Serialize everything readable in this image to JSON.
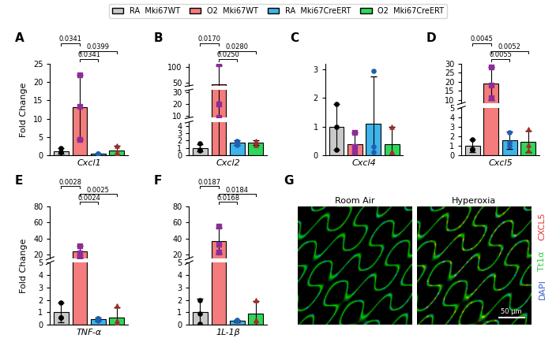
{
  "chart_data": [
    {
      "type": "bar",
      "title": "A",
      "y_label": "Fold Change",
      "categories": [
        "Cxcl1"
      ],
      "ylim": [
        0,
        25
      ],
      "yticks": [
        0,
        5,
        10,
        15,
        20,
        25
      ],
      "series": [
        {
          "color": "#c9c9c9",
          "marker": "circle",
          "values": [
            1.2
          ],
          "errors": [
            0.8
          ],
          "points": [
            [
              2.0,
              0.8,
              0.8
            ]
          ]
        },
        {
          "color": "#f47c7c",
          "marker": "square",
          "values": [
            13.2
          ],
          "errors": [
            8.8
          ],
          "points": [
            [
              21.9,
              13.3,
              4.4
            ]
          ]
        },
        {
          "color": "#3fb3ea",
          "marker": "circle",
          "values": [
            0.5
          ],
          "errors": [
            0.05
          ],
          "points": [
            [
              0.45,
              0.5,
              0.55
            ]
          ]
        },
        {
          "color": "#2fd65a",
          "marker": "triangle",
          "values": [
            1.3
          ],
          "errors": [
            1.2
          ],
          "points": [
            [
              2.7,
              0.8,
              0.4
            ]
          ]
        }
      ],
      "comparisons": [
        {
          "groups": [
            1,
            2
          ],
          "p": "0.0341"
        },
        {
          "groups": [
            1,
            3
          ],
          "p": "0.0399"
        },
        {
          "groups": [
            0,
            1
          ],
          "p": "0.0341"
        }
      ]
    },
    {
      "type": "bar",
      "title": "B",
      "categories": [
        "Cxcl2"
      ],
      "ylim": [
        [
          0,
          4.5
        ],
        [
          8,
          32
        ],
        [
          40,
          110
        ]
      ],
      "yticks": [
        [
          0,
          1,
          2,
          3,
          4
        ],
        [
          10,
          20,
          30
        ],
        [
          50,
          100
        ]
      ],
      "series": [
        {
          "color": "#c9c9c9",
          "marker": "circle",
          "values": [
            1.0
          ],
          "errors": [
            0.5
          ],
          "points": [
            [
              1.6,
              0.6,
              0.8
            ]
          ]
        },
        {
          "color": "#f47c7c",
          "marker": "square",
          "values": [
            45
          ],
          "errors": [
            60
          ],
          "points": [
            [
              108,
              20,
              8
            ]
          ]
        },
        {
          "color": "#3fb3ea",
          "marker": "circle",
          "values": [
            1.7
          ],
          "errors": [
            0.3
          ],
          "points": [
            [
              1.9,
              1.4,
              1.8
            ]
          ]
        },
        {
          "color": "#2fd65a",
          "marker": "triangle",
          "values": [
            1.7
          ],
          "errors": [
            0.3
          ],
          "points": [
            [
              1.4,
              1.8,
              1.9
            ]
          ]
        }
      ],
      "comparisons": [
        {
          "groups": [
            1,
            2
          ],
          "p": "0.0250"
        },
        {
          "groups": [
            1,
            3
          ],
          "p": "0.0280"
        },
        {
          "groups": [
            0,
            1
          ],
          "p": "0.0170"
        }
      ]
    },
    {
      "type": "bar",
      "title": "C",
      "categories": [
        "Cxcl4"
      ],
      "legend": "upper center",
      "ylim": [
        0,
        3.2
      ],
      "yticks": [
        0,
        1,
        2,
        3
      ],
      "series": [
        {
          "name": "RA  Mki67WT",
          "color": "#c9c9c9",
          "marker": "circle",
          "values": [
            1.0
          ],
          "errors": [
            0.8
          ],
          "points": [
            [
              1.8,
              1.0,
              0.2
            ]
          ]
        },
        {
          "name": "O2  Mki67WT",
          "color": "#f47c7c",
          "marker": "square",
          "values": [
            0.4
          ],
          "errors": [
            0.4
          ],
          "points": [
            [
              0.8,
              0.3,
              0.1
            ]
          ]
        },
        {
          "name": "RA  Mki67CreERT",
          "color": "#3fb3ea",
          "marker": "circle",
          "values": [
            1.1
          ],
          "errors": [
            1.65
          ],
          "points": [
            [
              2.95,
              0.3,
              0.1
            ]
          ]
        },
        {
          "name": "O2  Mki67CreERT",
          "color": "#2fd65a",
          "marker": "triangle",
          "values": [
            0.4
          ],
          "errors": [
            0.6
          ],
          "points": [
            [
              1.0,
              0.1,
              0.1
            ]
          ]
        }
      ]
    },
    {
      "type": "bar",
      "title": "D",
      "categories": [
        "Cxcl5"
      ],
      "ylim": [
        [
          0,
          5
        ],
        [
          8,
          30
        ]
      ],
      "yticks": [
        [
          0,
          1,
          2,
          3,
          4,
          5
        ],
        [
          10,
          15,
          20,
          25,
          30
        ]
      ],
      "series": [
        {
          "color": "#c9c9c9",
          "marker": "circle",
          "values": [
            1.0
          ],
          "errors": [
            0.7
          ],
          "points": [
            [
              1.7,
              0.6,
              0.7
            ]
          ]
        },
        {
          "color": "#f47c7c",
          "marker": "square",
          "values": [
            19
          ],
          "errors": [
            9
          ],
          "points": [
            [
              28,
              18,
              11
            ]
          ]
        },
        {
          "color": "#3fb3ea",
          "marker": "circle",
          "values": [
            1.55
          ],
          "errors": [
            0.9
          ],
          "points": [
            [
              2.4,
              1.3,
              1.0
            ]
          ]
        },
        {
          "color": "#2fd65a",
          "marker": "triangle",
          "values": [
            1.45
          ],
          "errors": [
            1.1
          ],
          "points": [
            [
              2.7,
              1.1,
              0.5
            ]
          ]
        }
      ],
      "comparisons": [
        {
          "groups": [
            1,
            2
          ],
          "p": "0.0055"
        },
        {
          "groups": [
            1,
            3
          ],
          "p": "0.0052"
        },
        {
          "groups": [
            0,
            1
          ],
          "p": "0.0045"
        }
      ]
    },
    {
      "type": "bar",
      "title": "E",
      "y_label": "Fold Change",
      "categories": [
        "TNF-α"
      ],
      "ylim": [
        [
          0,
          5
        ],
        [
          15,
          80
        ]
      ],
      "yticks": [
        [
          0,
          1,
          2,
          3,
          4,
          5
        ],
        [
          20,
          40,
          60,
          80
        ]
      ],
      "series": [
        {
          "color": "#c9c9c9",
          "marker": "circle",
          "values": [
            1.0
          ],
          "errors": [
            0.8
          ],
          "points": [
            [
              1.8,
              0.6,
              0.6
            ]
          ]
        },
        {
          "color": "#f47c7c",
          "marker": "square",
          "values": [
            23.3
          ],
          "errors": [
            7.6
          ],
          "points": [
            [
              31,
              22,
              17
            ]
          ]
        },
        {
          "color": "#3fb3ea",
          "marker": "circle",
          "values": [
            0.45
          ],
          "errors": [
            0.15
          ],
          "points": [
            [
              0.3,
              0.5,
              0.5
            ]
          ]
        },
        {
          "color": "#2fd65a",
          "marker": "triangle",
          "values": [
            0.6
          ],
          "errors": [
            0.8
          ],
          "points": [
            [
              1.5,
              0.3,
              0.1
            ]
          ]
        }
      ],
      "comparisons": [
        {
          "groups": [
            1,
            2
          ],
          "p": "0.0024"
        },
        {
          "groups": [
            1,
            3
          ],
          "p": "0.0025"
        },
        {
          "groups": [
            0,
            1
          ],
          "p": "0.0028"
        }
      ]
    },
    {
      "type": "bar",
      "title": "F",
      "categories": [
        "1L-1β"
      ],
      "ylim": [
        [
          0,
          5
        ],
        [
          15,
          80
        ]
      ],
      "yticks": [
        [
          0,
          1,
          2,
          3,
          4,
          5
        ],
        [
          20,
          40,
          60,
          80
        ]
      ],
      "series": [
        {
          "color": "#c9c9c9",
          "marker": "circle",
          "values": [
            1.0
          ],
          "errors": [
            1.1
          ],
          "points": [
            [
              2.0,
              0.9,
              0.1
            ]
          ]
        },
        {
          "color": "#f47c7c",
          "marker": "square",
          "values": [
            37
          ],
          "errors": [
            16
          ],
          "points": [
            [
              55,
              33,
              23
            ]
          ]
        },
        {
          "color": "#3fb3ea",
          "marker": "circle",
          "values": [
            0.3
          ],
          "errors": [
            0.1
          ],
          "points": [
            [
              0.3,
              0.4,
              0.3
            ]
          ]
        },
        {
          "color": "#2fd65a",
          "marker": "triangle",
          "values": [
            0.9
          ],
          "errors": [
            1.0
          ],
          "points": [
            [
              2.0,
              0.4,
              0.3
            ]
          ]
        }
      ],
      "comparisons": [
        {
          "groups": [
            1,
            2
          ],
          "p": "0.0168"
        },
        {
          "groups": [
            1,
            3
          ],
          "p": "0.0184"
        },
        {
          "groups": [
            0,
            1
          ],
          "p": "0.0187"
        }
      ]
    }
  ],
  "image_panel": {
    "title": "G",
    "panels": [
      "Room Air",
      "Hyperoxia"
    ],
    "channels": [
      {
        "label": "CXCL5",
        "color": "#e8322c"
      },
      {
        "label": "Tt1α",
        "color": "#2ecc40"
      },
      {
        "label": "DAPI",
        "color": "#3a5fcd"
      }
    ],
    "scale_bar": "50 μm"
  }
}
